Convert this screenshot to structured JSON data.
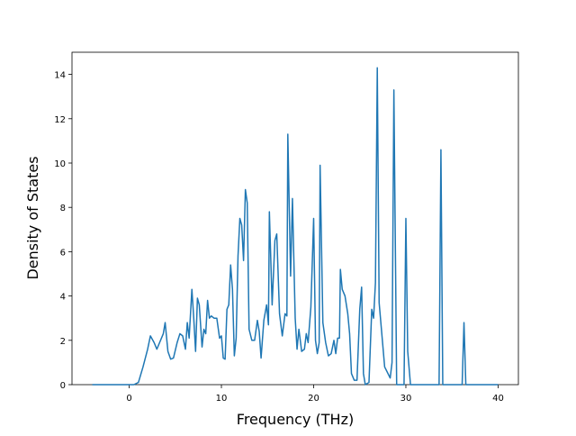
{
  "chart_data": {
    "type": "line",
    "x_label": "Frequency (THz)",
    "y_label": "Density of States",
    "xlim": [
      -6.2,
      42.2
    ],
    "ylim": [
      0,
      15
    ],
    "xticks": [
      0,
      10,
      20,
      30,
      40
    ],
    "yticks": [
      0,
      2,
      4,
      6,
      8,
      10,
      12,
      14
    ],
    "series": [
      {
        "color": "#1f77b4",
        "x": [
          -4,
          0.5,
          1,
          1.5,
          2,
          2.3,
          2.7,
          3,
          3.3,
          3.7,
          3.9,
          4.2,
          4.5,
          4.8,
          5.2,
          5.5,
          5.8,
          6.1,
          6.3,
          6.5,
          6.8,
          7.0,
          7.2,
          7.4,
          7.6,
          7.9,
          8.1,
          8.3,
          8.5,
          8.7,
          8.9,
          9.2,
          9.5,
          9.8,
          10.0,
          10.2,
          10.4,
          10.6,
          10.8,
          11.0,
          11.2,
          11.4,
          11.6,
          11.8,
          12.0,
          12.2,
          12.4,
          12.6,
          12.8,
          13.0,
          13.3,
          13.6,
          13.9,
          14.1,
          14.3,
          14.6,
          14.9,
          15.1,
          15.2,
          15.5,
          15.8,
          16.0,
          16.3,
          16.6,
          16.9,
          17.1,
          17.2,
          17.5,
          17.7,
          18.0,
          18.2,
          18.4,
          18.7,
          19.0,
          19.2,
          19.4,
          19.7,
          20.0,
          20.2,
          20.4,
          20.6,
          20.7,
          21.0,
          21.3,
          21.6,
          21.9,
          22.2,
          22.4,
          22.6,
          22.8,
          22.9,
          23.1,
          23.4,
          23.7,
          23.9,
          24.1,
          24.4,
          24.7,
          25.0,
          25.2,
          25.4,
          25.6,
          26.0,
          26.3,
          26.5,
          26.7,
          26.9,
          27.1,
          27.7,
          28.3,
          28.5,
          28.7,
          29.0,
          29.8,
          30.0,
          30.2,
          30.5,
          33.6,
          33.8,
          34.0,
          36.1,
          36.3,
          36.5,
          40
        ],
        "values": [
          0,
          0,
          0.1,
          0.8,
          1.6,
          2.2,
          1.9,
          1.6,
          1.9,
          2.3,
          2.8,
          1.5,
          1.15,
          1.2,
          1.9,
          2.3,
          2.2,
          1.6,
          2.8,
          2.1,
          4.3,
          3.0,
          1.5,
          3.9,
          3.6,
          1.7,
          2.5,
          2.3,
          3.8,
          3.0,
          3.1,
          3.0,
          3.0,
          2.1,
          2.2,
          1.2,
          1.15,
          3.4,
          3.6,
          5.4,
          4.3,
          1.3,
          2.1,
          5.8,
          7.5,
          7.2,
          5.6,
          8.8,
          8.2,
          2.5,
          2.0,
          2.0,
          2.9,
          2.4,
          1.2,
          2.9,
          3.6,
          2.7,
          7.8,
          3.6,
          6.5,
          6.8,
          3.2,
          2.2,
          3.2,
          3.1,
          11.3,
          4.9,
          8.4,
          3.0,
          1.6,
          2.5,
          1.5,
          1.6,
          2.3,
          1.9,
          3.5,
          7.5,
          2.0,
          1.4,
          1.9,
          9.9,
          2.8,
          1.9,
          1.3,
          1.4,
          2.0,
          1.4,
          2.1,
          2.1,
          5.2,
          4.3,
          4.0,
          3.2,
          2.3,
          0.5,
          0.2,
          0.2,
          3.4,
          4.4,
          0.5,
          0,
          0.1,
          3.4,
          3.0,
          4.6,
          14.3,
          3.7,
          0.8,
          0.3,
          1.0,
          13.3,
          0,
          0,
          7.5,
          1.5,
          0,
          0,
          10.6,
          0,
          0,
          2.8,
          0,
          0
        ]
      }
    ]
  }
}
